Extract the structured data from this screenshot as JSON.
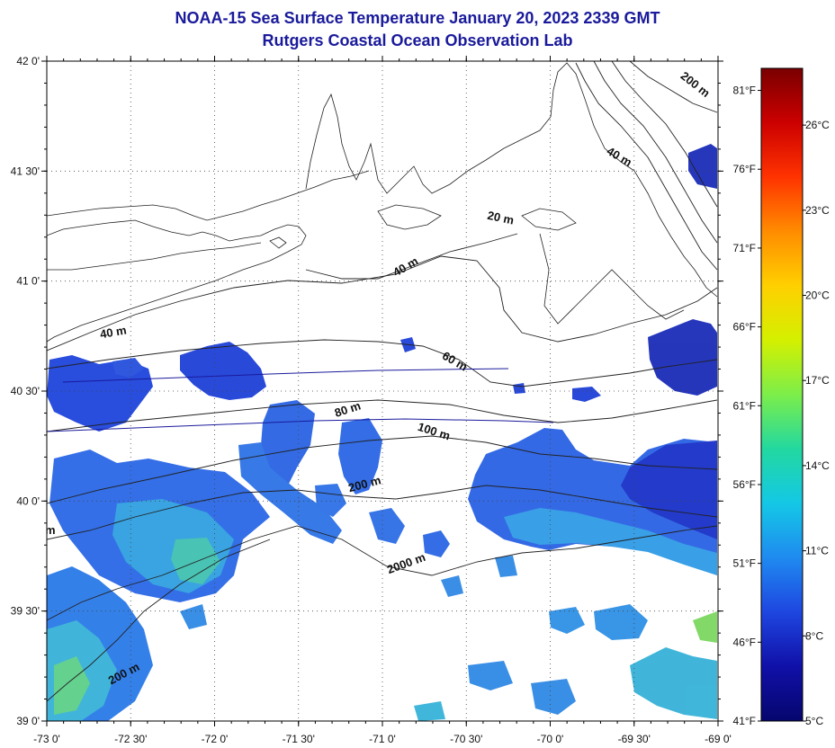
{
  "title": {
    "line1": "NOAA-15 Sea Surface Temperature January 20, 2023 2339 GMT",
    "line2": "Rutgers Coastal Ocean Observation Lab"
  },
  "map": {
    "x_ticks": [
      "-73 0'",
      "-72 30'",
      "-72 0'",
      "-71 30'",
      "-71 0'",
      "-70 30'",
      "-70 0'",
      "-69 30'",
      "-69 0'"
    ],
    "y_ticks": [
      "42 0'",
      "41 30'",
      "41 0'",
      "40 30'",
      "40 0'",
      "39 30'",
      "39 0'"
    ],
    "lon_range": [
      -73,
      -69
    ],
    "lat_range": [
      39,
      42
    ],
    "grid": "dotted",
    "contour_labels": [
      {
        "text": "200 m",
        "lon": -69.15,
        "lat": 41.88,
        "angle": 38
      },
      {
        "text": "40 m",
        "lon": -69.6,
        "lat": 41.55,
        "angle": 30
      },
      {
        "text": "20 m",
        "lon": -70.3,
        "lat": 41.27,
        "angle": 12
      },
      {
        "text": "40 m",
        "lon": -70.85,
        "lat": 41.05,
        "angle": -30
      },
      {
        "text": "40 m",
        "lon": -72.6,
        "lat": 40.75,
        "angle": -10
      },
      {
        "text": "60 m",
        "lon": -70.58,
        "lat": 40.62,
        "angle": 30
      },
      {
        "text": "80 m",
        "lon": -71.2,
        "lat": 40.4,
        "angle": -18
      },
      {
        "text": "100 m",
        "lon": -70.7,
        "lat": 40.3,
        "angle": 18
      },
      {
        "text": "200 m",
        "lon": -71.1,
        "lat": 40.06,
        "angle": -15
      },
      {
        "text": "2000 m",
        "lon": -70.85,
        "lat": 39.7,
        "angle": -20
      },
      {
        "text": "m",
        "lon": -72.98,
        "lat": 39.85,
        "angle": 0
      },
      {
        "text": "200 m",
        "lon": -72.53,
        "lat": 39.2,
        "angle": -28
      }
    ]
  },
  "colorbar": {
    "celsius": [
      "26°C",
      "23°C",
      "20°C",
      "17°C",
      "14°C",
      "11°C",
      "8°C",
      "5°C"
    ],
    "fahrenheit": [
      "81°F",
      "76°F",
      "71°F",
      "66°F",
      "61°F",
      "56°F",
      "51°F",
      "46°F",
      "41°F"
    ],
    "colors": [
      "#7a0000",
      "#cc0000",
      "#ff3300",
      "#ff8c00",
      "#ffd000",
      "#d4f000",
      "#7cee4a",
      "#22d8a0",
      "#14c8e6",
      "#1f8af0",
      "#1e46e0",
      "#1010a8",
      "#06066e"
    ]
  },
  "colors": {
    "title": "#1a1a9c",
    "water_deep": "#1e46e0",
    "water_mid": "#2a7ae8"
  }
}
